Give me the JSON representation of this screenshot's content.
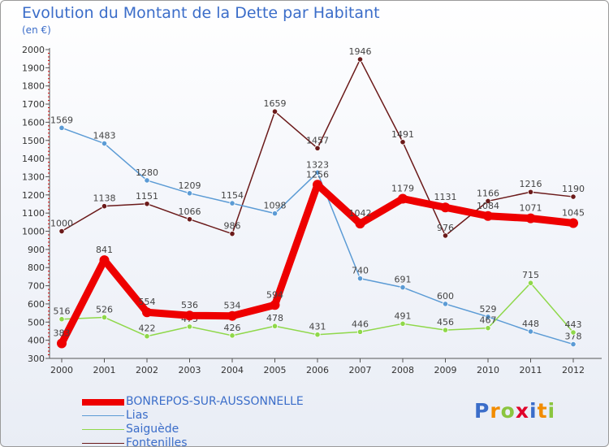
{
  "chart_data": {
    "type": "line",
    "title": "Evolution du Montant de la Dette par Habitant",
    "subtitle": "(en €)",
    "x": [
      "2000",
      "2001",
      "2002",
      "2003",
      "2004",
      "2005",
      "2006",
      "2007",
      "2008",
      "2009",
      "2010",
      "2011",
      "2012"
    ],
    "ylim": [
      300,
      2000
    ],
    "yticks": [
      300,
      400,
      500,
      600,
      700,
      800,
      900,
      1000,
      1100,
      1200,
      1300,
      1400,
      1500,
      1600,
      1700,
      1800,
      1900,
      2000
    ],
    "grid": false,
    "legend_position": "bottom-left",
    "series": [
      {
        "name": "Fontenilles",
        "color": "#6b1a1a",
        "values": [
          1000,
          1138,
          1151,
          1066,
          986,
          1659,
          1457,
          1946,
          1491,
          976,
          1166,
          1216,
          1190
        ]
      },
      {
        "name": "Lias",
        "color": "#5b9bd5",
        "values": [
          1569,
          1483,
          1280,
          1209,
          1154,
          1098,
          1323,
          740,
          691,
          600,
          529,
          448,
          378
        ]
      },
      {
        "name": "Saiguède",
        "color": "#8fd84a",
        "values": [
          516,
          526,
          422,
          475,
          426,
          478,
          431,
          446,
          491,
          456,
          467,
          715,
          443
        ]
      },
      {
        "name": "BONREPOS-SUR-AUSSONNELLE",
        "color": "#ee0000",
        "values": [
          383,
          841,
          554,
          536,
          534,
          594,
          1256,
          1042,
          1179,
          1131,
          1084,
          1071,
          1045
        ]
      }
    ]
  },
  "legend_items": [
    {
      "label": "BONREPOS-SUR-AUSSONNELLE",
      "color": "#ee0000",
      "thickness": 8
    },
    {
      "label": "Lias",
      "color": "#5b9bd5",
      "thickness": 1.5
    },
    {
      "label": "Saiguède",
      "color": "#8fd84a",
      "thickness": 1.5
    },
    {
      "label": "Fontenilles",
      "color": "#6b1a1a",
      "thickness": 1.5
    }
  ],
  "logo": {
    "letters": [
      "P",
      "r",
      "o",
      "x",
      "i",
      "t",
      "i"
    ],
    "colors": [
      "#3b6dc9",
      "#f28c00",
      "#8bc53f",
      "#e0002a",
      "#3b6dc9",
      "#f28c00",
      "#8bc53f"
    ]
  }
}
